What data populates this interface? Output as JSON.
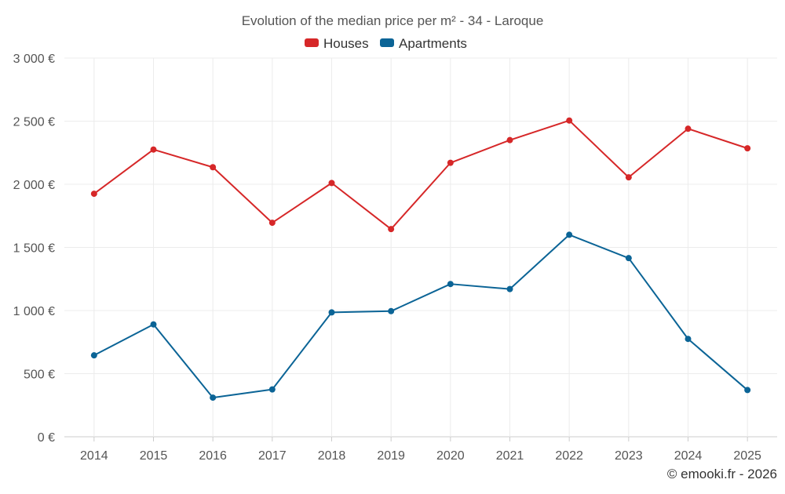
{
  "chart_data": {
    "type": "line",
    "title": "Evolution of the median price per m² - 34 - Laroque",
    "categories": [
      "2014",
      "2015",
      "2016",
      "2017",
      "2018",
      "2019",
      "2020",
      "2021",
      "2022",
      "2023",
      "2024",
      "2025"
    ],
    "series": [
      {
        "name": "Houses",
        "color": "#d62728",
        "values": [
          1925,
          2275,
          2135,
          1695,
          2010,
          1645,
          2170,
          2350,
          2505,
          2055,
          2440,
          2285
        ]
      },
      {
        "name": "Apartments",
        "color": "#0b6496",
        "values": [
          645,
          890,
          310,
          375,
          985,
          995,
          1210,
          1170,
          1600,
          1415,
          775,
          370
        ]
      }
    ],
    "ylim": [
      0,
      3000
    ],
    "yticks": [
      0,
      500,
      1000,
      1500,
      2000,
      2500,
      3000
    ],
    "ytick_labels": [
      "0 €",
      "500 €",
      "1 000 €",
      "1 500 €",
      "2 000 €",
      "2 500 €",
      "3 000 €"
    ],
    "xlabel": "",
    "ylabel": "",
    "grid": true,
    "legend_position": "top-center",
    "credit": "© emooki.fr - 2026"
  }
}
